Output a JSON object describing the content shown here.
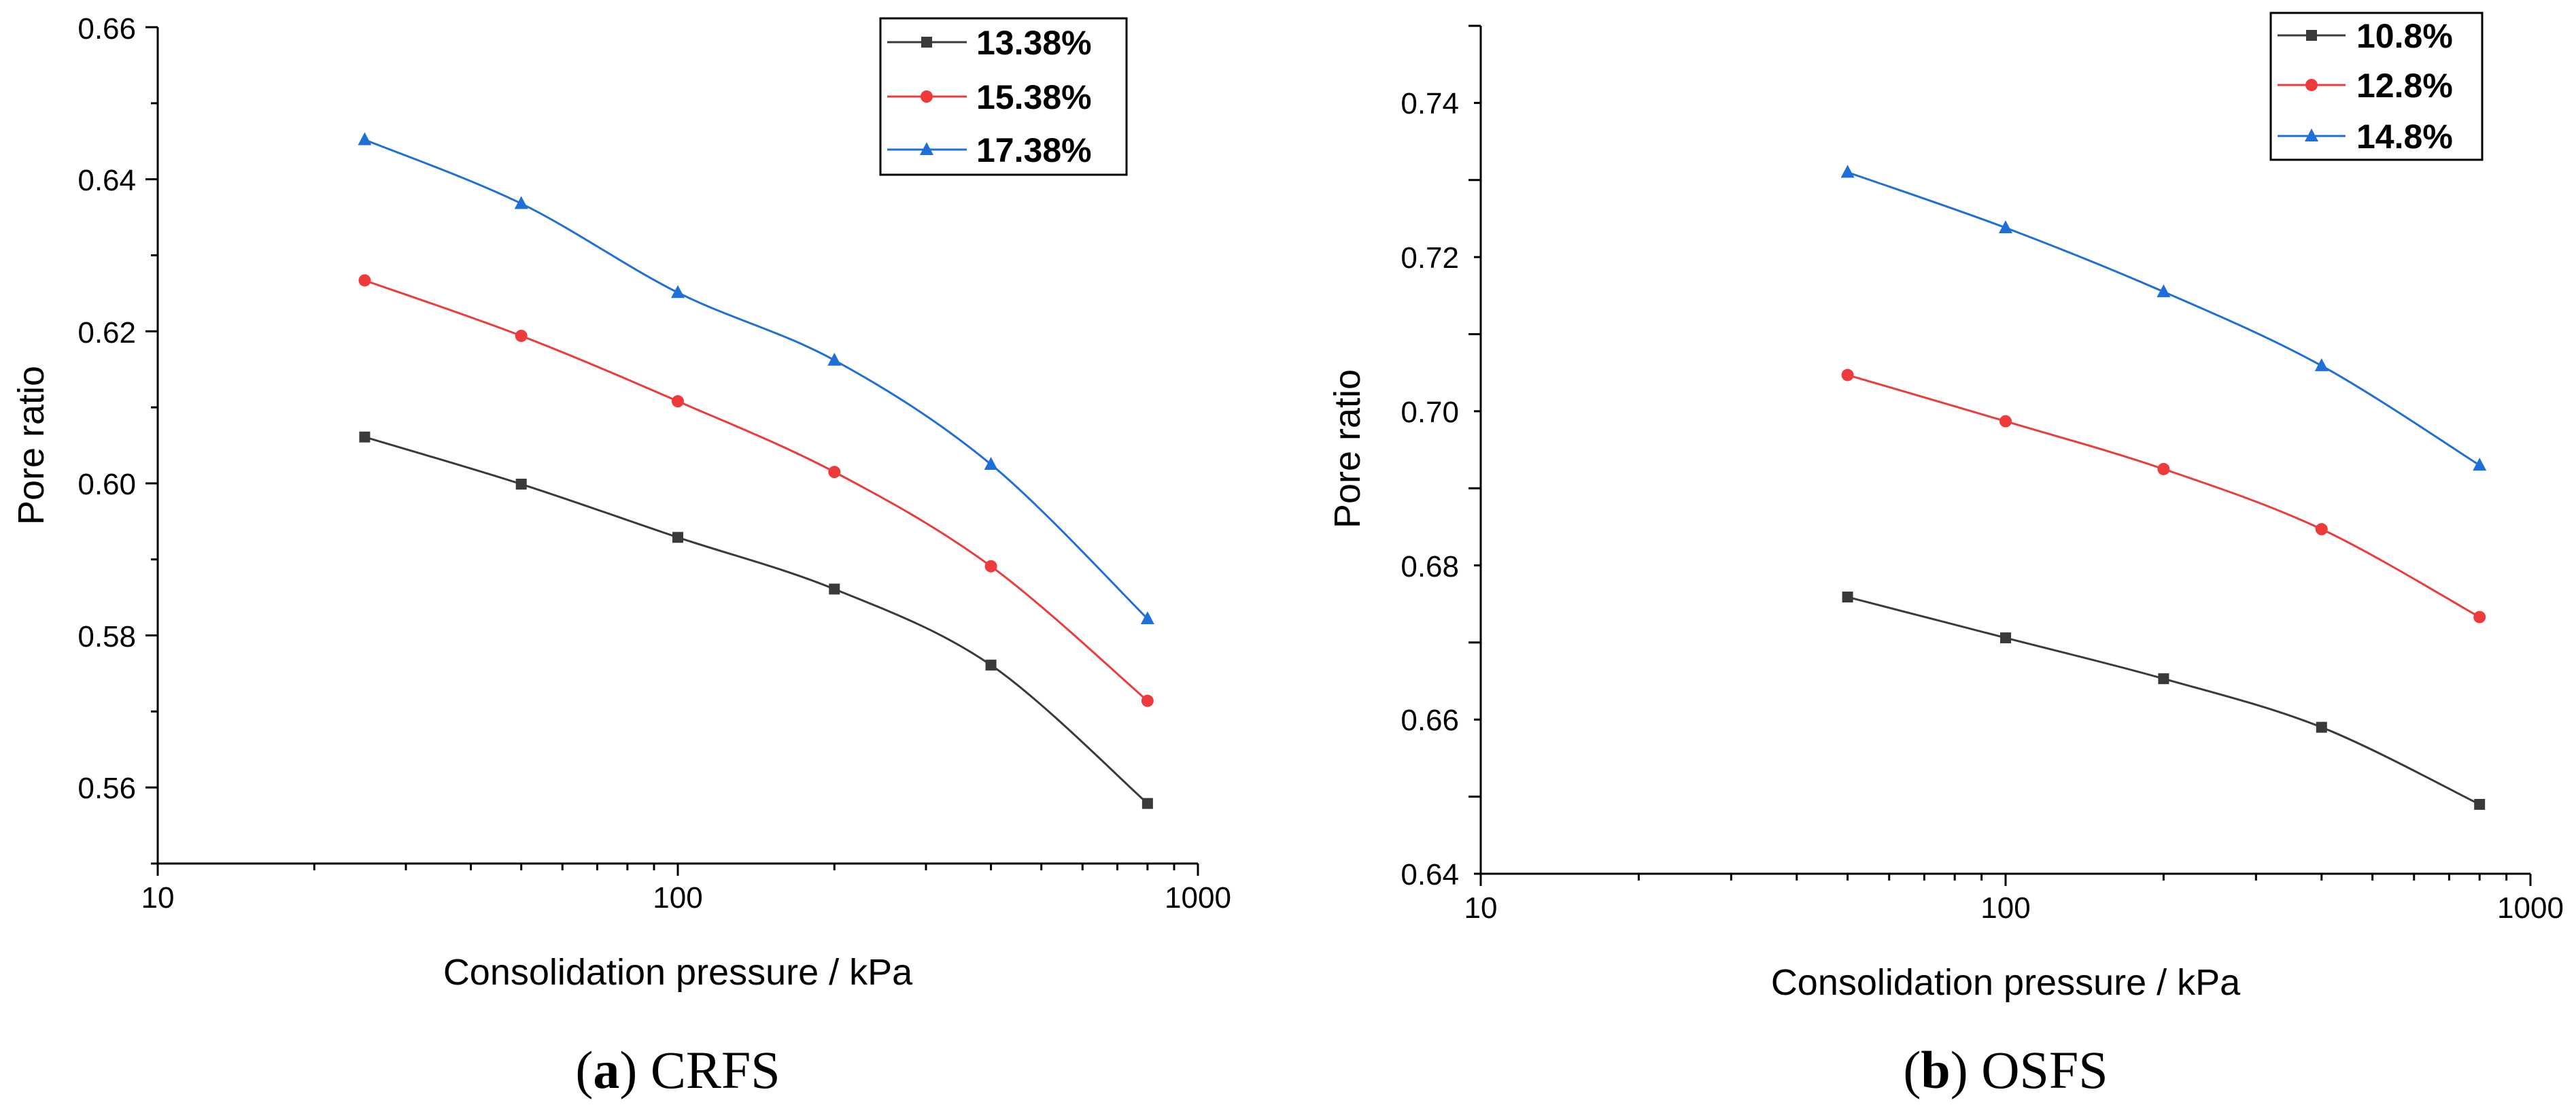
{
  "chart_data": [
    {
      "type": "line",
      "panel_label": "a",
      "caption": "CRFS",
      "xlabel": "Consolidation pressure / kPa",
      "ylabel": "Pore ratio",
      "xscale": "log",
      "xlim": [
        10,
        1000
      ],
      "ylim": [
        0.55,
        0.66
      ],
      "xticks": [
        "10",
        "100",
        "1000"
      ],
      "yticks": [
        "0.56",
        "0.58",
        "0.60",
        "0.62",
        "0.64",
        "0.66"
      ],
      "x": [
        25,
        50,
        100,
        200,
        400,
        800
      ],
      "legend_position": "top-right",
      "series": [
        {
          "name": "13.38%",
          "color": "#3a3a3a",
          "marker": "square",
          "values": [
            0.6061,
            0.5999,
            0.5929,
            0.5861,
            0.5761,
            0.5579
          ]
        },
        {
          "name": "15.38%",
          "color": "#ee3a3a",
          "marker": "circle",
          "values": [
            0.6267,
            0.6194,
            0.6108,
            0.6015,
            0.5891,
            0.5714
          ]
        },
        {
          "name": "17.38%",
          "color": "#1f6fd8",
          "marker": "triangle",
          "values": [
            0.6452,
            0.6368,
            0.6251,
            0.6162,
            0.6025,
            0.5822
          ]
        }
      ]
    },
    {
      "type": "line",
      "panel_label": "b",
      "caption": "OSFS",
      "xlabel": "Consolidation pressure / kPa",
      "ylabel": "Pore ratio",
      "xscale": "log",
      "xlim": [
        10,
        1000
      ],
      "ylim": [
        0.64,
        0.75
      ],
      "xticks": [
        "10",
        "100",
        "1000"
      ],
      "yticks": [
        "0.64",
        "0.66",
        "0.68",
        "0.70",
        "0.72",
        "0.74"
      ],
      "x": [
        50,
        100,
        200,
        400,
        800
      ],
      "legend_position": "top-right",
      "series": [
        {
          "name": "10.8%",
          "color": "#3a3a3a",
          "marker": "square",
          "values": [
            0.6759,
            0.6706,
            0.6653,
            0.659,
            0.649
          ]
        },
        {
          "name": "12.8%",
          "color": "#ee3a3a",
          "marker": "circle",
          "values": [
            0.7047,
            0.6987,
            0.6925,
            0.6847,
            0.6733
          ]
        },
        {
          "name": "14.8%",
          "color": "#1f6fd8",
          "marker": "triangle",
          "values": [
            0.731,
            0.7238,
            0.7155,
            0.7059,
            0.693
          ]
        }
      ]
    }
  ]
}
